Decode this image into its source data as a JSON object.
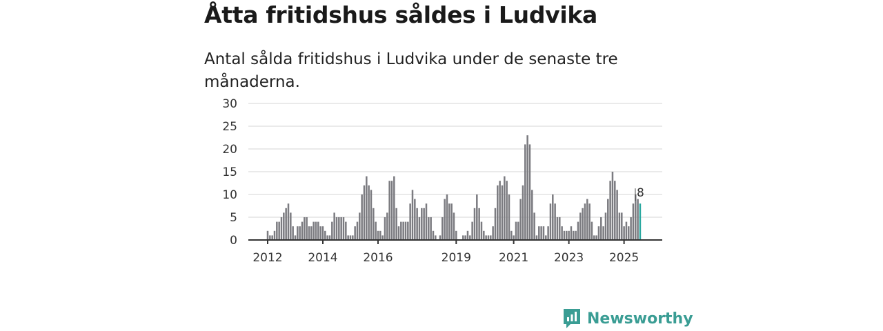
{
  "title": "Åtta fritidshus såldes i Ludvika",
  "subtitle": "Antal sålda fritidshus i Ludvika under de senaste tre månaderna.",
  "brand": "Newsworthy",
  "colors": {
    "bar": "#7b7b80",
    "highlight": "#2aa8a0",
    "grid": "#dddddd",
    "brand": "#3a9d94"
  },
  "chart_data": {
    "type": "bar",
    "title": "Antal sålda fritidshus i Ludvika",
    "xlabel": "",
    "ylabel": "",
    "ylim": [
      0,
      30
    ],
    "yticks": [
      0,
      5,
      10,
      15,
      20,
      25,
      30
    ],
    "xticks": [
      {
        "label": "2012",
        "index": 0
      },
      {
        "label": "2014",
        "index": 24
      },
      {
        "label": "2016",
        "index": 48
      },
      {
        "label": "2019",
        "index": 82
      },
      {
        "label": "2021",
        "index": 107
      },
      {
        "label": "2023",
        "index": 131
      },
      {
        "label": "2025",
        "index": 155
      }
    ],
    "values": [
      2,
      1,
      1,
      2,
      4,
      4,
      5,
      6,
      7,
      8,
      6,
      3,
      1,
      3,
      3,
      4,
      5,
      5,
      3,
      3,
      4,
      4,
      4,
      3,
      3,
      2,
      1,
      1,
      4,
      6,
      5,
      5,
      5,
      5,
      4,
      1,
      1,
      1,
      3,
      4,
      6,
      10,
      12,
      14,
      12,
      11,
      7,
      4,
      2,
      2,
      1,
      5,
      6,
      13,
      13,
      14,
      7,
      3,
      4,
      4,
      4,
      4,
      8,
      11,
      9,
      7,
      5,
      7,
      7,
      8,
      5,
      5,
      2,
      1,
      0,
      1,
      5,
      9,
      10,
      8,
      8,
      6,
      2,
      0,
      0,
      1,
      1,
      2,
      1,
      4,
      7,
      10,
      7,
      4,
      2,
      1,
      1,
      1,
      3,
      7,
      12,
      13,
      12,
      14,
      13,
      10,
      2,
      1,
      4,
      4,
      9,
      12,
      21,
      23,
      21,
      11,
      6,
      1,
      3,
      3,
      3,
      1,
      3,
      8,
      10,
      8,
      5,
      5,
      3,
      2,
      2,
      2,
      3,
      2,
      2,
      4,
      6,
      7,
      8,
      9,
      8,
      4,
      1,
      1,
      3,
      5,
      3,
      6,
      9,
      13,
      15,
      13,
      11,
      6,
      6,
      3,
      4,
      3,
      5,
      8,
      10,
      9,
      8
    ],
    "highlight_last": true,
    "annotation": "8",
    "grid": true
  }
}
